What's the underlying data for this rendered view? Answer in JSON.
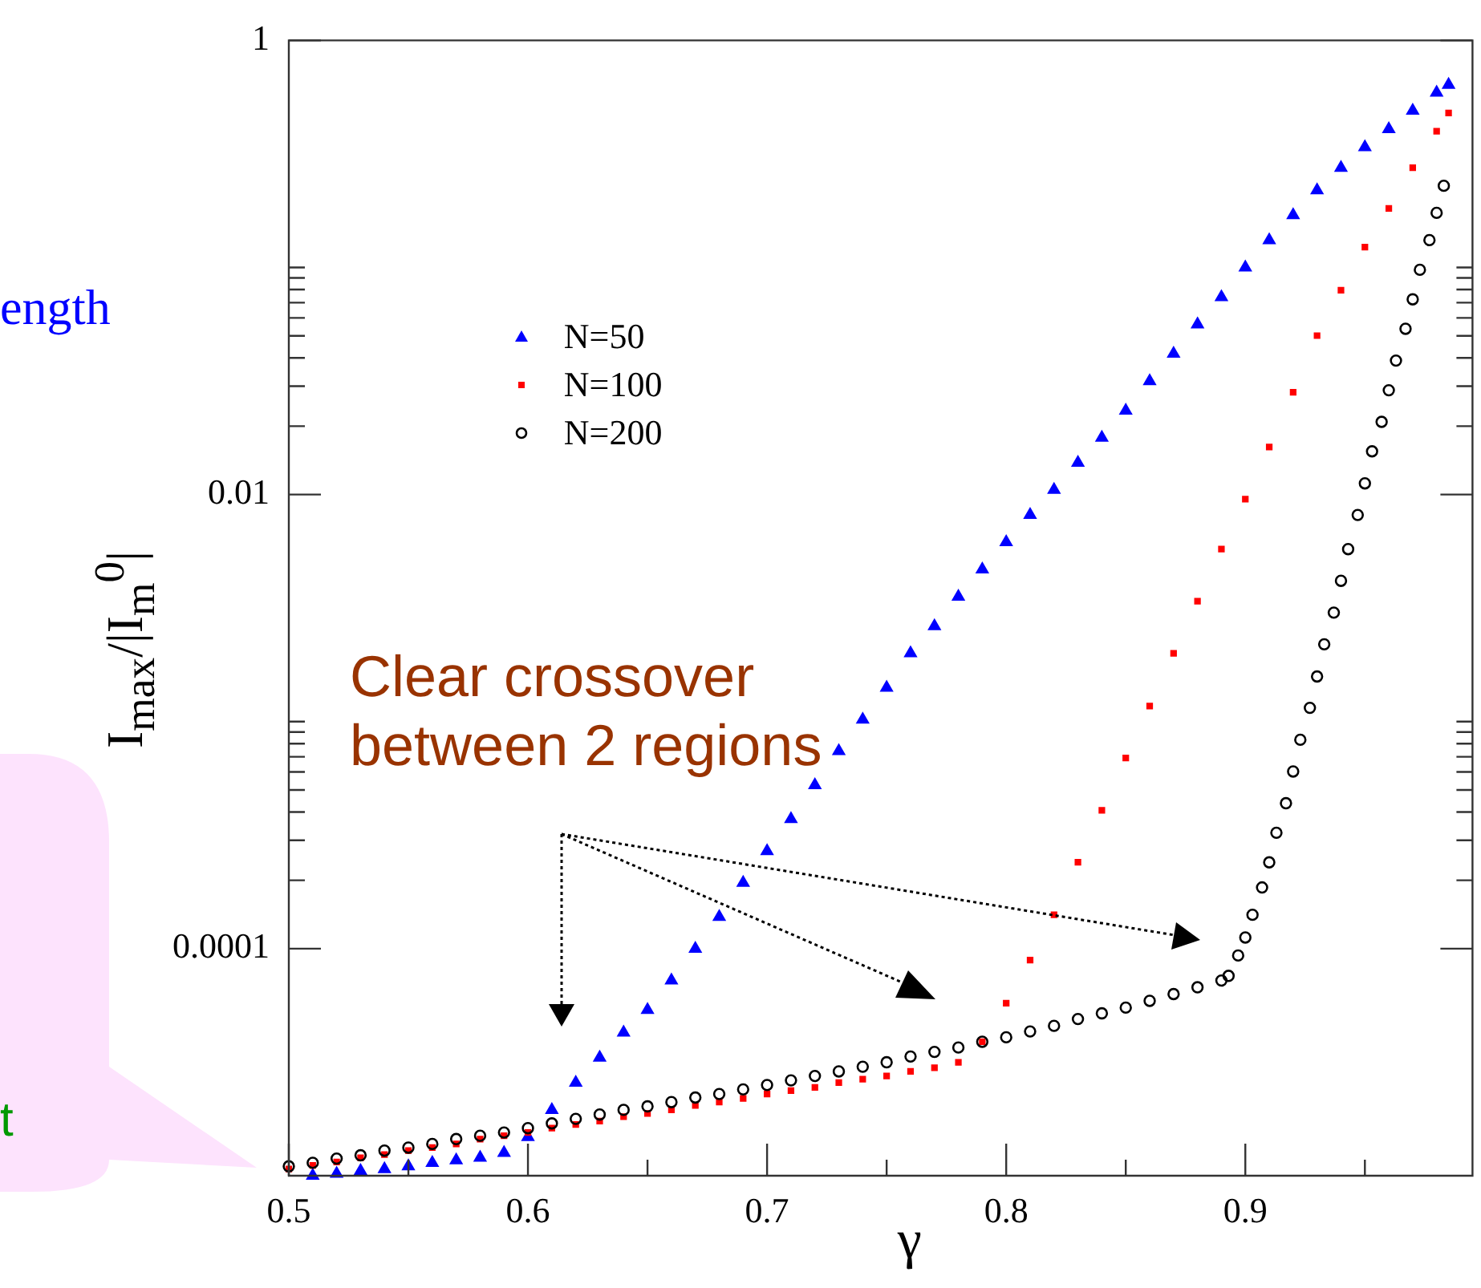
{
  "chart_data": {
    "type": "scatter",
    "xlabel": "γ",
    "ylabel": "I$_{max}$/|I$_{m}$$^{0}$|",
    "xlim": [
      0.5,
      0.995
    ],
    "xticks": [
      0.5,
      {
        "value": 0.55,
        "label": null
      },
      0.6,
      {
        "value": 0.65,
        "label": null
      },
      0.7,
      {
        "value": 0.75,
        "label": null
      },
      0.8,
      {
        "value": 0.85,
        "label": null
      },
      0.9,
      {
        "value": 0.95,
        "label": null
      }
    ],
    "ylim": [
      1e-05,
      1
    ],
    "yticks": [
      1,
      {
        "value": 0.1,
        "label": null
      },
      {
        "value": 0.09,
        "label": null
      },
      {
        "value": 0.08,
        "label": null
      },
      {
        "value": 0.07,
        "label": null
      },
      {
        "value": 0.06,
        "label": null
      },
      {
        "value": 0.05,
        "label": null
      },
      {
        "value": 0.04,
        "label": null
      },
      {
        "value": 0.03,
        "label": null
      },
      {
        "value": 0.02,
        "label": null
      },
      0.01,
      {
        "value": 0.001,
        "label": null
      },
      {
        "value": 0.0009,
        "label": null
      },
      {
        "value": 0.0008,
        "label": null
      },
      {
        "value": 0.0007,
        "label": null
      },
      {
        "value": 0.0006,
        "label": null
      },
      {
        "value": 0.0005,
        "label": null
      },
      {
        "value": 0.0004,
        "label": null
      },
      {
        "value": 0.0003,
        "label": null
      },
      {
        "value": 0.0002,
        "label": null
      },
      0.0001
    ],
    "log": "y",
    "legend": "top left",
    "series": [
      {
        "name": "N=50",
        "color": "#0000ff",
        "marker": "triangle",
        "x": [
          0.51,
          0.52,
          0.53,
          0.54,
          0.55,
          0.56,
          0.57,
          0.58,
          0.59,
          0.6,
          0.61,
          0.62,
          0.63,
          0.64,
          0.65,
          0.66,
          0.67,
          0.68,
          0.69,
          0.7,
          0.71,
          0.72,
          0.73,
          0.74,
          0.75,
          0.76,
          0.77,
          0.78,
          0.79,
          0.8,
          0.81,
          0.82,
          0.83,
          0.84,
          0.85,
          0.86,
          0.87,
          0.88,
          0.89,
          0.9,
          0.91,
          0.92,
          0.93,
          0.94,
          0.95,
          0.96,
          0.97,
          0.98,
          0.985
        ],
        "values": [
          1e-05,
          1.02e-05,
          1.05e-05,
          1.07e-05,
          1.1e-05,
          1.14e-05,
          1.17e-05,
          1.2e-05,
          1.26e-05,
          1.48e-05,
          1.95e-05,
          2.57e-05,
          3.31e-05,
          4.27e-05,
          5.37e-05,
          7.24e-05,
          0.0001,
          0.000138,
          0.000195,
          0.000269,
          0.000372,
          0.000525,
          0.000741,
          0.00102,
          0.00141,
          0.002,
          0.00263,
          0.00355,
          0.00468,
          0.00617,
          0.00813,
          0.0105,
          0.0138,
          0.0178,
          0.0234,
          0.0316,
          0.0417,
          0.0562,
          0.0741,
          0.1,
          0.132,
          0.17,
          0.219,
          0.275,
          0.339,
          0.407,
          0.49,
          0.589,
          0.637
        ]
      },
      {
        "name": "N=100",
        "color": "#ff0000",
        "marker": "square",
        "x": [
          0.5,
          0.51,
          0.52,
          0.53,
          0.54,
          0.55,
          0.56,
          0.57,
          0.58,
          0.59,
          0.6,
          0.61,
          0.62,
          0.63,
          0.64,
          0.65,
          0.66,
          0.67,
          0.68,
          0.69,
          0.7,
          0.71,
          0.72,
          0.73,
          0.74,
          0.75,
          0.76,
          0.77,
          0.78,
          0.79,
          0.8,
          0.81,
          0.82,
          0.83,
          0.84,
          0.85,
          0.86,
          0.87,
          0.88,
          0.89,
          0.9,
          0.91,
          0.92,
          0.93,
          0.94,
          0.95,
          0.96,
          0.97,
          0.98,
          0.985
        ],
        "values": [
          1.07e-05,
          1.11e-05,
          1.15e-05,
          1.2e-05,
          1.24e-05,
          1.29e-05,
          1.33e-05,
          1.38e-05,
          1.45e-05,
          1.5e-05,
          1.55e-05,
          1.62e-05,
          1.68e-05,
          1.74e-05,
          1.82e-05,
          1.88e-05,
          1.95e-05,
          2.04e-05,
          2.11e-05,
          2.19e-05,
          2.29e-05,
          2.37e-05,
          2.45e-05,
          2.57e-05,
          2.66e-05,
          2.75e-05,
          2.88e-05,
          2.99e-05,
          3.16e-05,
          3.89e-05,
          5.75e-05,
          8.91e-05,
          0.000141,
          0.00024,
          0.000407,
          0.000692,
          0.00117,
          0.002,
          0.00339,
          0.00575,
          0.00955,
          0.0162,
          0.0282,
          0.0501,
          0.0794,
          0.123,
          0.182,
          0.275,
          0.398,
          0.479
        ]
      },
      {
        "name": "N=200",
        "color": "#000000",
        "marker": "circle",
        "x": [
          0.5,
          0.51,
          0.52,
          0.53,
          0.54,
          0.55,
          0.56,
          0.57,
          0.58,
          0.59,
          0.6,
          0.61,
          0.62,
          0.63,
          0.64,
          0.65,
          0.66,
          0.67,
          0.68,
          0.69,
          0.7,
          0.71,
          0.72,
          0.73,
          0.74,
          0.75,
          0.76,
          0.77,
          0.78,
          0.79,
          0.8,
          0.81,
          0.82,
          0.83,
          0.84,
          0.85,
          0.86,
          0.87,
          0.88,
          0.89,
          0.893,
          0.897,
          0.9,
          0.903,
          0.907,
          0.91,
          0.913,
          0.917,
          0.92,
          0.923,
          0.927,
          0.93,
          0.933,
          0.937,
          0.94,
          0.943,
          0.947,
          0.95,
          0.953,
          0.957,
          0.96,
          0.963,
          0.967,
          0.97,
          0.973,
          0.977,
          0.98,
          0.983
        ],
        "values": [
          1.1e-05,
          1.14e-05,
          1.19e-05,
          1.23e-05,
          1.29e-05,
          1.33e-05,
          1.38e-05,
          1.45e-05,
          1.5e-05,
          1.55e-05,
          1.62e-05,
          1.7e-05,
          1.78e-05,
          1.86e-05,
          1.95e-05,
          2.02e-05,
          2.11e-05,
          2.21e-05,
          2.29e-05,
          2.4e-05,
          2.51e-05,
          2.63e-05,
          2.75e-05,
          2.88e-05,
          3.02e-05,
          3.16e-05,
          3.35e-05,
          3.51e-05,
          3.67e-05,
          3.89e-05,
          4.07e-05,
          4.32e-05,
          4.57e-05,
          4.9e-05,
          5.19e-05,
          5.5e-05,
          5.89e-05,
          6.31e-05,
          6.76e-05,
          7.24e-05,
          7.59e-05,
          9.33e-05,
          0.000112,
          0.000141,
          0.000186,
          0.00024,
          0.000324,
          0.000437,
          0.000603,
          0.000832,
          0.00115,
          0.00158,
          0.00219,
          0.00302,
          0.00417,
          0.00575,
          0.00813,
          0.0112,
          0.0155,
          0.0209,
          0.0288,
          0.0389,
          0.0537,
          0.0724,
          0.0977,
          0.132,
          0.174,
          0.229
        ]
      }
    ],
    "annotations": [
      "Clear crossover between 2 regions",
      "ength",
      "t"
    ]
  }
}
